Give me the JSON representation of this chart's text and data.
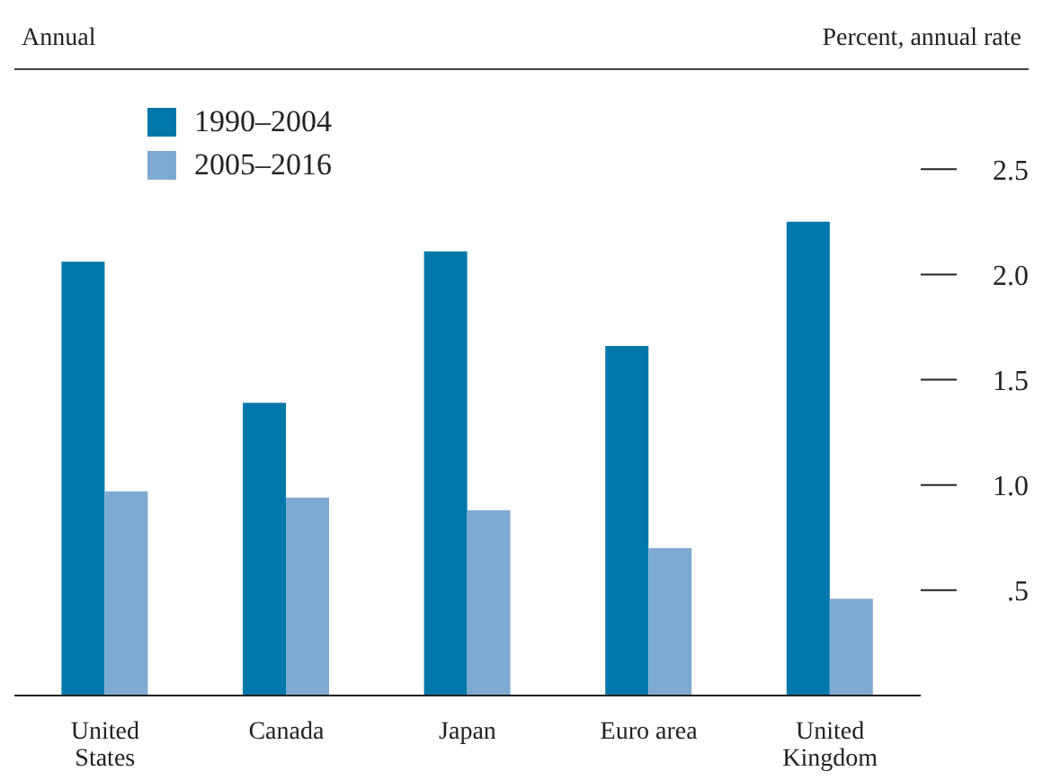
{
  "chart_data": {
    "type": "bar",
    "subtitle": "Annual",
    "ylabel": "Percent, annual rate",
    "categories": [
      "United States",
      "Canada",
      "Japan",
      "Euro area",
      "United Kingdom"
    ],
    "series": [
      {
        "name": "1990–2004",
        "color": "#0077aa",
        "values": [
          2.06,
          1.39,
          2.11,
          1.66,
          2.25
        ]
      },
      {
        "name": "2005–2016",
        "color": "#7eaad1",
        "values": [
          0.97,
          0.94,
          0.88,
          0.7,
          0.46
        ]
      }
    ],
    "ylim": [
      0,
      2.8
    ],
    "yticks": [
      {
        "value": 0.5,
        "label": ".5"
      },
      {
        "value": 1,
        "label": "1.0"
      },
      {
        "value": 1.5,
        "label": "1.5"
      },
      {
        "value": 2,
        "label": "2.0"
      },
      {
        "value": 2.5,
        "label": "2.5"
      }
    ],
    "legend": "top left"
  }
}
